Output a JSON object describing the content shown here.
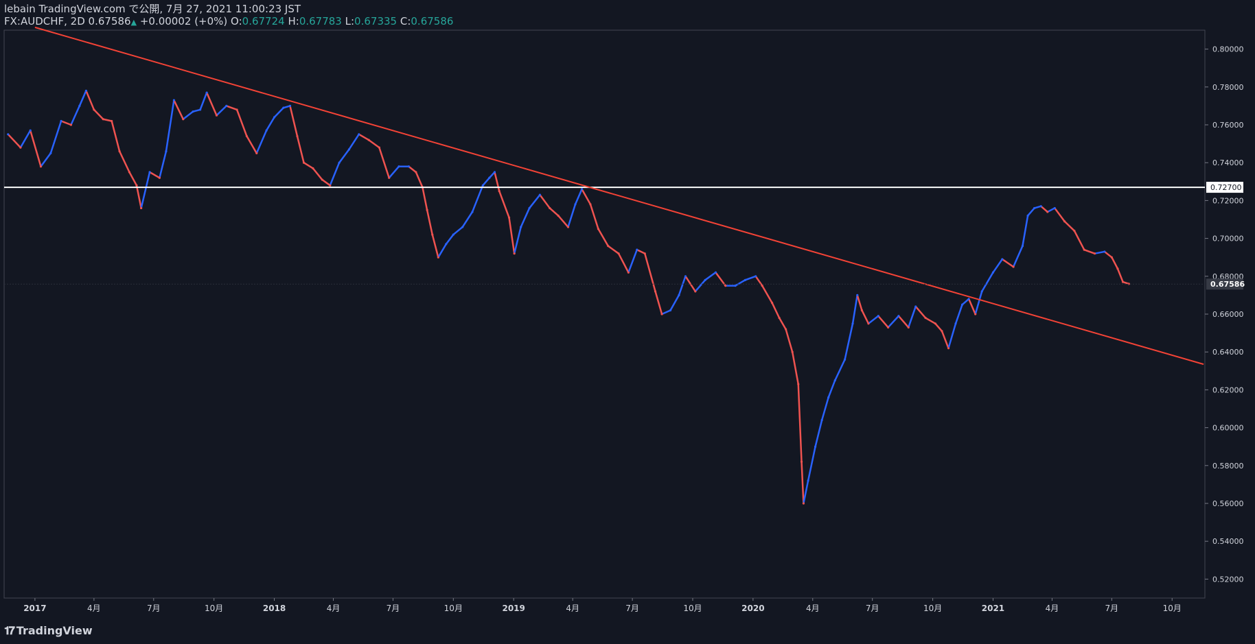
{
  "header": {
    "line1": "lebain TradingView.com で公開, 7月 27, 2021 11:00:23 JST",
    "symbol": "FX:AUDCHF, 2D",
    "last": "0.67586",
    "change": "+0.00002 (+0%)",
    "o_label": "O:",
    "o_value": "0.67724",
    "h_label": "H:",
    "h_value": "0.67783",
    "l_label": "L:",
    "l_value": "0.67335",
    "c_label": "C:",
    "c_value": "0.67586"
  },
  "logo": {
    "text": "TradingView",
    "icon": "tradingview-logo-icon"
  },
  "colors": {
    "background": "#131722",
    "up": "#2962ff",
    "down": "#ef5350",
    "trendline": "#f44336",
    "hline": "#ffffff",
    "text": "#d1d4dc",
    "ohlc_value": "#26a69a"
  },
  "chart_data": {
    "type": "line",
    "title": "FX:AUDCHF, 2D",
    "xlim": [
      "2016-11-15",
      "2021-11-20"
    ],
    "ylim": [
      0.51,
      0.81
    ],
    "y_ticks": [
      "0.80000",
      "0.78000",
      "0.76000",
      "0.74000",
      "0.72000",
      "0.70000",
      "0.68000",
      "0.66000",
      "0.64000",
      "0.62000",
      "0.60000",
      "0.58000",
      "0.56000",
      "0.54000",
      "0.52000"
    ],
    "x_ticks": [
      {
        "date": "2017-01-01",
        "label": "2017"
      },
      {
        "date": "2017-04-01",
        "label": "4月"
      },
      {
        "date": "2017-07-01",
        "label": "7月"
      },
      {
        "date": "2017-10-01",
        "label": "10月"
      },
      {
        "date": "2018-01-01",
        "label": "2018"
      },
      {
        "date": "2018-04-01",
        "label": "4月"
      },
      {
        "date": "2018-07-01",
        "label": "7月"
      },
      {
        "date": "2018-10-01",
        "label": "10月"
      },
      {
        "date": "2019-01-01",
        "label": "2019"
      },
      {
        "date": "2019-04-01",
        "label": "4月"
      },
      {
        "date": "2019-07-01",
        "label": "7月"
      },
      {
        "date": "2019-10-01",
        "label": "10月"
      },
      {
        "date": "2020-01-01",
        "label": "2020"
      },
      {
        "date": "2020-04-01",
        "label": "4月"
      },
      {
        "date": "2020-07-01",
        "label": "7月"
      },
      {
        "date": "2020-10-01",
        "label": "10月"
      },
      {
        "date": "2021-01-01",
        "label": "2021"
      },
      {
        "date": "2021-04-01",
        "label": "4月"
      },
      {
        "date": "2021-07-01",
        "label": "7月"
      },
      {
        "date": "2021-10-01",
        "label": "10月"
      }
    ],
    "series": [
      {
        "points": [
          [
            "2016-11-21",
            0.755
          ],
          [
            "2016-12-10",
            0.748
          ],
          [
            "2016-12-25",
            0.757
          ],
          [
            "2017-01-10",
            0.738
          ],
          [
            "2017-01-25",
            0.745
          ],
          [
            "2017-02-10",
            0.762
          ],
          [
            "2017-02-25",
            0.76
          ],
          [
            "2017-03-10",
            0.77
          ],
          [
            "2017-03-20",
            0.778
          ],
          [
            "2017-04-01",
            0.768
          ],
          [
            "2017-04-15",
            0.763
          ],
          [
            "2017-04-28",
            0.762
          ],
          [
            "2017-05-10",
            0.746
          ],
          [
            "2017-05-25",
            0.735
          ],
          [
            "2017-06-05",
            0.728
          ],
          [
            "2017-06-12",
            0.716
          ],
          [
            "2017-06-25",
            0.735
          ],
          [
            "2017-07-10",
            0.732
          ],
          [
            "2017-07-20",
            0.746
          ],
          [
            "2017-08-01",
            0.773
          ],
          [
            "2017-08-15",
            0.763
          ],
          [
            "2017-08-30",
            0.767
          ],
          [
            "2017-09-10",
            0.768
          ],
          [
            "2017-09-20",
            0.777
          ],
          [
            "2017-10-05",
            0.765
          ],
          [
            "2017-10-20",
            0.77
          ],
          [
            "2017-11-05",
            0.768
          ],
          [
            "2017-11-20",
            0.754
          ],
          [
            "2017-12-05",
            0.745
          ],
          [
            "2017-12-20",
            0.757
          ],
          [
            "2018-01-01",
            0.764
          ],
          [
            "2018-01-15",
            0.769
          ],
          [
            "2018-01-25",
            0.77
          ],
          [
            "2018-02-05",
            0.754
          ],
          [
            "2018-02-15",
            0.74
          ],
          [
            "2018-03-01",
            0.737
          ],
          [
            "2018-03-15",
            0.731
          ],
          [
            "2018-03-27",
            0.728
          ],
          [
            "2018-04-10",
            0.74
          ],
          [
            "2018-04-25",
            0.747
          ],
          [
            "2018-05-10",
            0.755
          ],
          [
            "2018-05-25",
            0.752
          ],
          [
            "2018-06-10",
            0.748
          ],
          [
            "2018-06-25",
            0.732
          ],
          [
            "2018-07-10",
            0.738
          ],
          [
            "2018-07-25",
            0.738
          ],
          [
            "2018-08-05",
            0.735
          ],
          [
            "2018-08-15",
            0.727
          ],
          [
            "2018-08-22",
            0.715
          ],
          [
            "2018-08-30",
            0.702
          ],
          [
            "2018-09-08",
            0.69
          ],
          [
            "2018-09-20",
            0.697
          ],
          [
            "2018-10-01",
            0.702
          ],
          [
            "2018-10-15",
            0.706
          ],
          [
            "2018-10-30",
            0.714
          ],
          [
            "2018-11-15",
            0.728
          ],
          [
            "2018-11-25",
            0.732
          ],
          [
            "2018-12-03",
            0.735
          ],
          [
            "2018-12-10",
            0.725
          ],
          [
            "2018-12-25",
            0.711
          ],
          [
            "2019-01-02",
            0.692
          ],
          [
            "2019-01-12",
            0.706
          ],
          [
            "2019-01-25",
            0.716
          ],
          [
            "2019-02-10",
            0.723
          ],
          [
            "2019-02-25",
            0.716
          ],
          [
            "2019-03-10",
            0.712
          ],
          [
            "2019-03-25",
            0.706
          ],
          [
            "2019-04-05",
            0.718
          ],
          [
            "2019-04-15",
            0.726
          ],
          [
            "2019-04-28",
            0.718
          ],
          [
            "2019-05-10",
            0.705
          ],
          [
            "2019-05-25",
            0.696
          ],
          [
            "2019-06-10",
            0.692
          ],
          [
            "2019-06-25",
            0.682
          ],
          [
            "2019-07-08",
            0.694
          ],
          [
            "2019-07-20",
            0.692
          ],
          [
            "2019-08-05",
            0.672
          ],
          [
            "2019-08-15",
            0.66
          ],
          [
            "2019-08-28",
            0.662
          ],
          [
            "2019-09-10",
            0.67
          ],
          [
            "2019-09-20",
            0.68
          ],
          [
            "2019-10-05",
            0.672
          ],
          [
            "2019-10-20",
            0.678
          ],
          [
            "2019-11-05",
            0.682
          ],
          [
            "2019-11-20",
            0.675
          ],
          [
            "2019-12-05",
            0.675
          ],
          [
            "2019-12-20",
            0.678
          ],
          [
            "2020-01-05",
            0.68
          ],
          [
            "2020-01-15",
            0.675
          ],
          [
            "2020-01-30",
            0.666
          ],
          [
            "2020-02-10",
            0.658
          ],
          [
            "2020-02-20",
            0.652
          ],
          [
            "2020-03-01",
            0.64
          ],
          [
            "2020-03-10",
            0.623
          ],
          [
            "2020-03-15",
            0.582
          ],
          [
            "2020-03-18",
            0.56
          ],
          [
            "2020-03-25",
            0.572
          ],
          [
            "2020-04-05",
            0.59
          ],
          [
            "2020-04-15",
            0.604
          ],
          [
            "2020-04-25",
            0.616
          ],
          [
            "2020-05-05",
            0.625
          ],
          [
            "2020-05-20",
            0.636
          ],
          [
            "2020-06-01",
            0.655
          ],
          [
            "2020-06-08",
            0.67
          ],
          [
            "2020-06-15",
            0.662
          ],
          [
            "2020-06-25",
            0.655
          ],
          [
            "2020-07-10",
            0.659
          ],
          [
            "2020-07-25",
            0.653
          ],
          [
            "2020-08-10",
            0.659
          ],
          [
            "2020-08-25",
            0.653
          ],
          [
            "2020-09-05",
            0.664
          ],
          [
            "2020-09-20",
            0.658
          ],
          [
            "2020-10-05",
            0.655
          ],
          [
            "2020-10-15",
            0.651
          ],
          [
            "2020-10-25",
            0.642
          ],
          [
            "2020-11-05",
            0.655
          ],
          [
            "2020-11-15",
            0.665
          ],
          [
            "2020-11-25",
            0.668
          ],
          [
            "2020-12-05",
            0.66
          ],
          [
            "2020-12-15",
            0.672
          ],
          [
            "2021-01-01",
            0.682
          ],
          [
            "2021-01-15",
            0.689
          ],
          [
            "2021-02-01",
            0.685
          ],
          [
            "2021-02-15",
            0.696
          ],
          [
            "2021-02-23",
            0.712
          ],
          [
            "2021-03-05",
            0.716
          ],
          [
            "2021-03-15",
            0.717
          ],
          [
            "2021-03-25",
            0.714
          ],
          [
            "2021-04-05",
            0.716
          ],
          [
            "2021-04-20",
            0.709
          ],
          [
            "2021-05-05",
            0.704
          ],
          [
            "2021-05-20",
            0.694
          ],
          [
            "2021-06-05",
            0.692
          ],
          [
            "2021-06-20",
            0.693
          ],
          [
            "2021-07-01",
            0.69
          ],
          [
            "2021-07-10",
            0.684
          ],
          [
            "2021-07-18",
            0.677
          ],
          [
            "2021-07-27",
            0.676
          ]
        ]
      }
    ],
    "annotations": {
      "trendline": {
        "from": [
          "2017-01-01",
          0.8115
        ],
        "to": [
          "2021-11-18",
          0.6335
        ]
      },
      "hline": {
        "value": 0.727,
        "label": "0.72700"
      },
      "last_price": {
        "value": 0.67586,
        "label": "0.67586"
      }
    }
  }
}
